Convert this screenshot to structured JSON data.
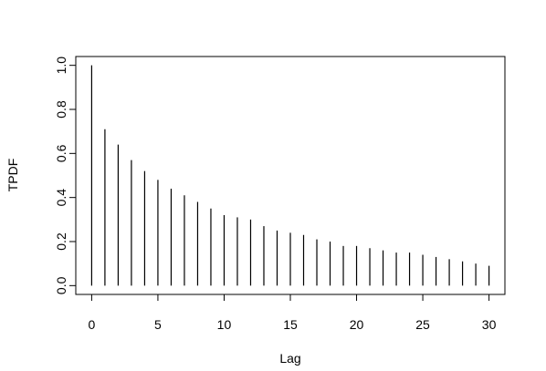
{
  "chart_data": {
    "type": "stem",
    "x_label": "Lag",
    "y_label": "TPDF",
    "x": [
      0,
      1,
      2,
      3,
      4,
      5,
      6,
      7,
      8,
      9,
      10,
      11,
      12,
      13,
      14,
      15,
      16,
      17,
      18,
      19,
      20,
      21,
      22,
      23,
      24,
      25,
      26,
      27,
      28,
      29,
      30
    ],
    "values": [
      1.0,
      0.71,
      0.64,
      0.57,
      0.52,
      0.48,
      0.44,
      0.41,
      0.38,
      0.35,
      0.32,
      0.31,
      0.3,
      0.27,
      0.25,
      0.24,
      0.23,
      0.21,
      0.2,
      0.18,
      0.18,
      0.17,
      0.16,
      0.15,
      0.15,
      0.14,
      0.13,
      0.12,
      0.11,
      0.1,
      0.09
    ],
    "color": "#000000",
    "xlim": [
      -1.2,
      31.2
    ],
    "ylim": [
      -0.04,
      1.04
    ],
    "xticks": [
      0,
      5,
      10,
      15,
      20,
      25,
      30
    ],
    "yticks": [
      {
        "value": 0,
        "label": "0.0"
      },
      0.2,
      0.4,
      0.6,
      0.8,
      {
        "value": 1,
        "label": "1.0"
      }
    ],
    "grid": false
  }
}
